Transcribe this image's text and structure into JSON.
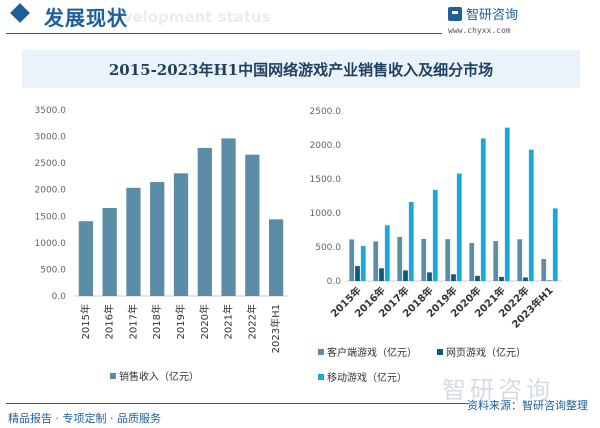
{
  "header": {
    "title": "发展现状",
    "subtitle": "Development status",
    "brand": "智研咨询",
    "url": "www.chyxx.com"
  },
  "banner_title": "2015-2023年H1中国网络游戏产业销售收入及细分市场",
  "footer": {
    "left": "精品报告 · 专项定制 · 品质服务",
    "source": "资料来源：智研咨询整理",
    "watermark": "智研咨询"
  },
  "colors": {
    "client": "#5b8ea6",
    "web": "#0f5a7a",
    "mobile": "#1aa7dc",
    "total": "#5b8ea6"
  },
  "chart_data": [
    {
      "type": "bar",
      "title": "",
      "categories": [
        "2015年",
        "2016年",
        "2017年",
        "2018年",
        "2019年",
        "2020年",
        "2021年",
        "2022年",
        "2023年H1"
      ],
      "series": [
        {
          "name": "销售收入（亿元）",
          "values": [
            1407.0,
            1655.7,
            2036.1,
            2144.4,
            2308.8,
            2786.9,
            2965.1,
            2658.8,
            1442.6
          ]
        }
      ],
      "ylim": [
        0,
        3500
      ],
      "yticks": [
        "0.0",
        "500.0",
        "1000.0",
        "1500.0",
        "2000.0",
        "2500.0",
        "3000.0",
        "3500.0"
      ],
      "legend": "bottom"
    },
    {
      "type": "bar",
      "title": "",
      "categories": [
        "2015年",
        "2016年",
        "2017年",
        "2018年",
        "2019年",
        "2020年",
        "2021年",
        "2022年",
        "2023年H1"
      ],
      "series": [
        {
          "name": "客户端游戏（亿元）",
          "values": [
            611.6,
            582.5,
            648.6,
            619.6,
            615.1,
            559.2,
            588.0,
            613.7,
            324.5
          ]
        },
        {
          "name": "网页游戏（亿元）",
          "values": [
            219.6,
            187.1,
            156.0,
            126.5,
            98.7,
            76.1,
            60.3,
            52.8,
            8.0
          ]
        },
        {
          "name": "移动游戏（亿元）",
          "values": [
            514.6,
            819.2,
            1161.2,
            1339.6,
            1581.1,
            2096.8,
            2255.4,
            1930.6,
            1067.0
          ]
        }
      ],
      "ylim": [
        0,
        2500
      ],
      "yticks": [
        "0.0",
        "500.0",
        "1000.0",
        "1500.0",
        "2000.0",
        "2500.0"
      ],
      "legend": "bottom"
    }
  ]
}
